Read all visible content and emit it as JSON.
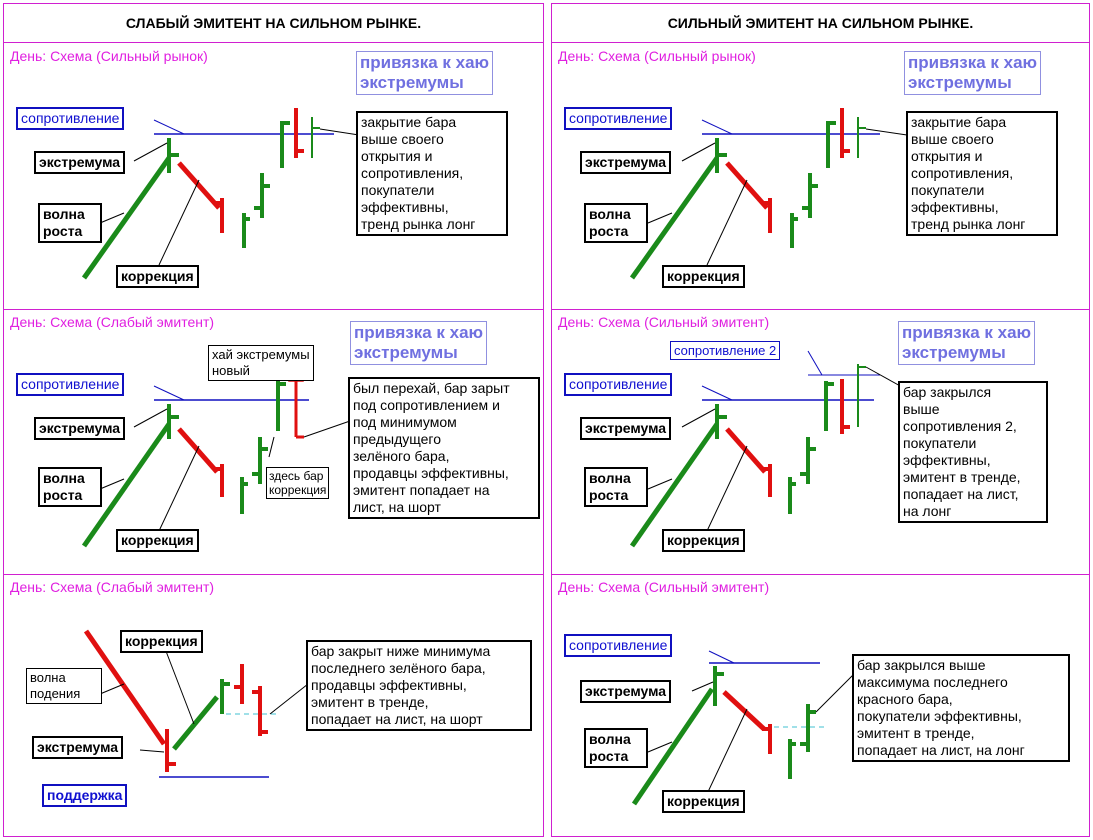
{
  "colors": {
    "frame": "#d020d0",
    "title": "#e020e0",
    "green": "#1a8a1a",
    "red": "#e01010",
    "level": "#1010c0",
    "cyan": "#40c0d0",
    "anchor": "#7070e0"
  },
  "left": {
    "heading": "СЛАБЫЙ ЭМИТЕНТ НА СИЛЬНОМ РЫНКЕ.",
    "cells": [
      {
        "title": "День: Схема (Сильный рынок)",
        "anchor": "привязка к хаю\nэкстремумы",
        "resistance": "сопротивление",
        "extremum": "экстремума",
        "wave": "волна\nроста",
        "correction": "коррекция",
        "note": "закрытие бара\nвыше своего\nоткрытия и\nсопротивления,\nпокупатели\nэффективны,\nтренд рынка лонг"
      },
      {
        "title": "День: Схема (Слабый эмитент)",
        "anchor": "привязка к хаю\nэкстремумы",
        "resistance": "сопротивление",
        "extremum": "экстремума",
        "wave": "волна\nроста",
        "correction": "коррекция",
        "high_new": "хай экстремумы\nновый",
        "here_bar": "здесь бар\nкоррекция",
        "note": "был перехай, бар зарыт\nпод сопротивлением и\nпод минимумом\nпредыдущего\nзелёного бара,\nпродавцы эффективны,\nэмитент попадает на\nлист, на шорт"
      },
      {
        "title": "День: Схема (Слабый эмитент)",
        "correction": "коррекция",
        "wave": "волна\nподения",
        "extremum": "экстремума",
        "support": "поддержка",
        "note": "бар закрыт ниже минимума\nпоследнего зелёного бара,\nпродавцы эффективны,\nэмитент в тренде,\nпопадает на лист, на шорт"
      }
    ]
  },
  "right": {
    "heading": "СИЛЬНЫЙ  ЭМИТЕНТ НА СИЛЬНОМ РЫНКЕ.",
    "cells": [
      {
        "title": "День: Схема (Сильный рынок)",
        "anchor": "привязка к хаю\nэкстремумы",
        "resistance": "сопротивление",
        "extremum": "экстремума",
        "wave": "волна\nроста",
        "correction": "коррекция",
        "note": "закрытие бара\nвыше своего\nоткрытия и\nсопротивления,\nпокупатели\nэффективны,\nтренд рынка лонг"
      },
      {
        "title": "День: Схема (Сильный эмитент)",
        "anchor": "привязка к хаю\nэкстремумы",
        "resistance2": "сопротивление 2",
        "resistance": "сопротивление",
        "extremum": "экстремума",
        "wave": "волна\nроста",
        "correction": "коррекция",
        "note": "бар закрылся\nвыше\nсопротивления 2,\nпокупатели\nэффективны,\nэмитент в тренде,\nпопадает на лист,\nна лонг"
      },
      {
        "title": "День: Схема (Сильный эмитент)",
        "resistance": "сопротивление",
        "extremum": "экстремума",
        "wave": "волна\nроста",
        "correction": "коррекция",
        "note": "бар закрылся выше\nмаксимума последнего\nкрасного бара,\nпокупатели эффективны,\nэмитент в тренде,\nпопадает на лист, на лонг"
      }
    ]
  }
}
